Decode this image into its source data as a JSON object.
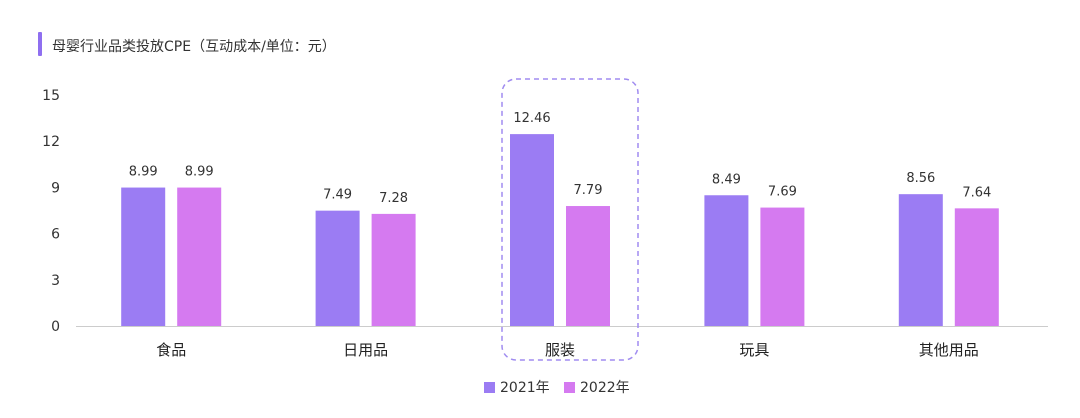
{
  "chart_data": {
    "type": "bar",
    "title": "母婴行业品类投放CPE（互动成本/单位：元）",
    "categories": [
      "食品",
      "日用品",
      "服装",
      "玩具",
      "其他用品"
    ],
    "series": [
      {
        "name": "2021年",
        "values": [
          8.99,
          7.49,
          12.46,
          8.49,
          8.56
        ]
      },
      {
        "name": "2022年",
        "values": [
          8.99,
          7.28,
          7.79,
          7.69,
          7.64
        ]
      }
    ],
    "ylim": [
      0,
      15
    ],
    "yticks": [
      0,
      3,
      6,
      9,
      12,
      15
    ],
    "highlighted_category": "服装",
    "legend": "bottom-center",
    "grid": false
  },
  "colors": {
    "series_2021": "#9b7cf3",
    "series_2022": "#d57af0",
    "title_accent": "#8f6ff0",
    "highlight_border": "#a08cf0",
    "axis": "#cccccc"
  }
}
